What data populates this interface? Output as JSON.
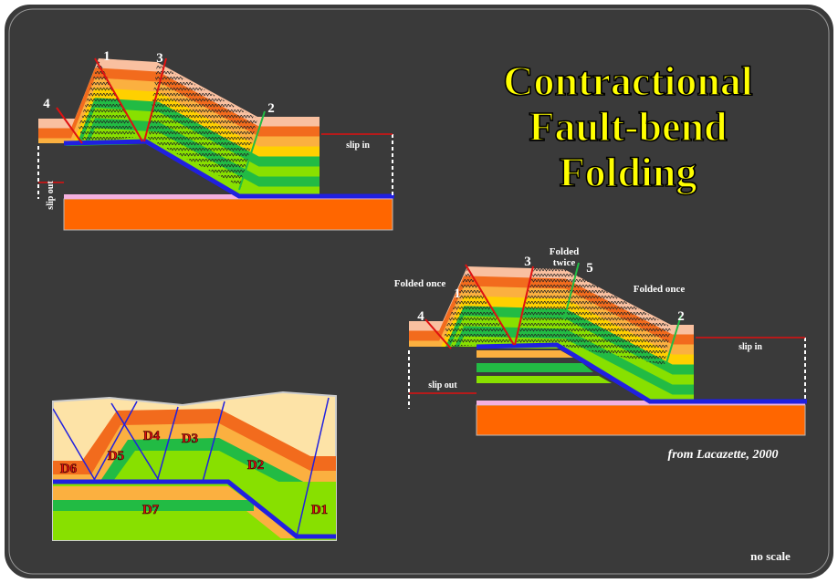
{
  "title": {
    "lines": [
      "Contractional",
      "Fault-bend",
      "Folding"
    ]
  },
  "diagram1": {
    "fault_labels": {
      "f1": "1",
      "f3": "3",
      "f4": "4",
      "f2": "2"
    },
    "slip_in": "slip in",
    "slip_out": "slip out"
  },
  "diagram2": {
    "fault_labels": {
      "f4": "4",
      "f1": "1",
      "f3": "3",
      "f5": "5",
      "f2": "2"
    },
    "annotations": {
      "folded_once_left": "Folded once",
      "folded_twice": [
        "Folded",
        "twice"
      ],
      "folded_once_right": "Folded once"
    },
    "slip_in": "slip in",
    "slip_out": "slip out"
  },
  "diagram3": {
    "domains": [
      "D4",
      "D3",
      "D5",
      "D2",
      "D6",
      "D7",
      "D1"
    ]
  },
  "credit": "from Lacazette, 2000",
  "scale_note": "no scale"
}
